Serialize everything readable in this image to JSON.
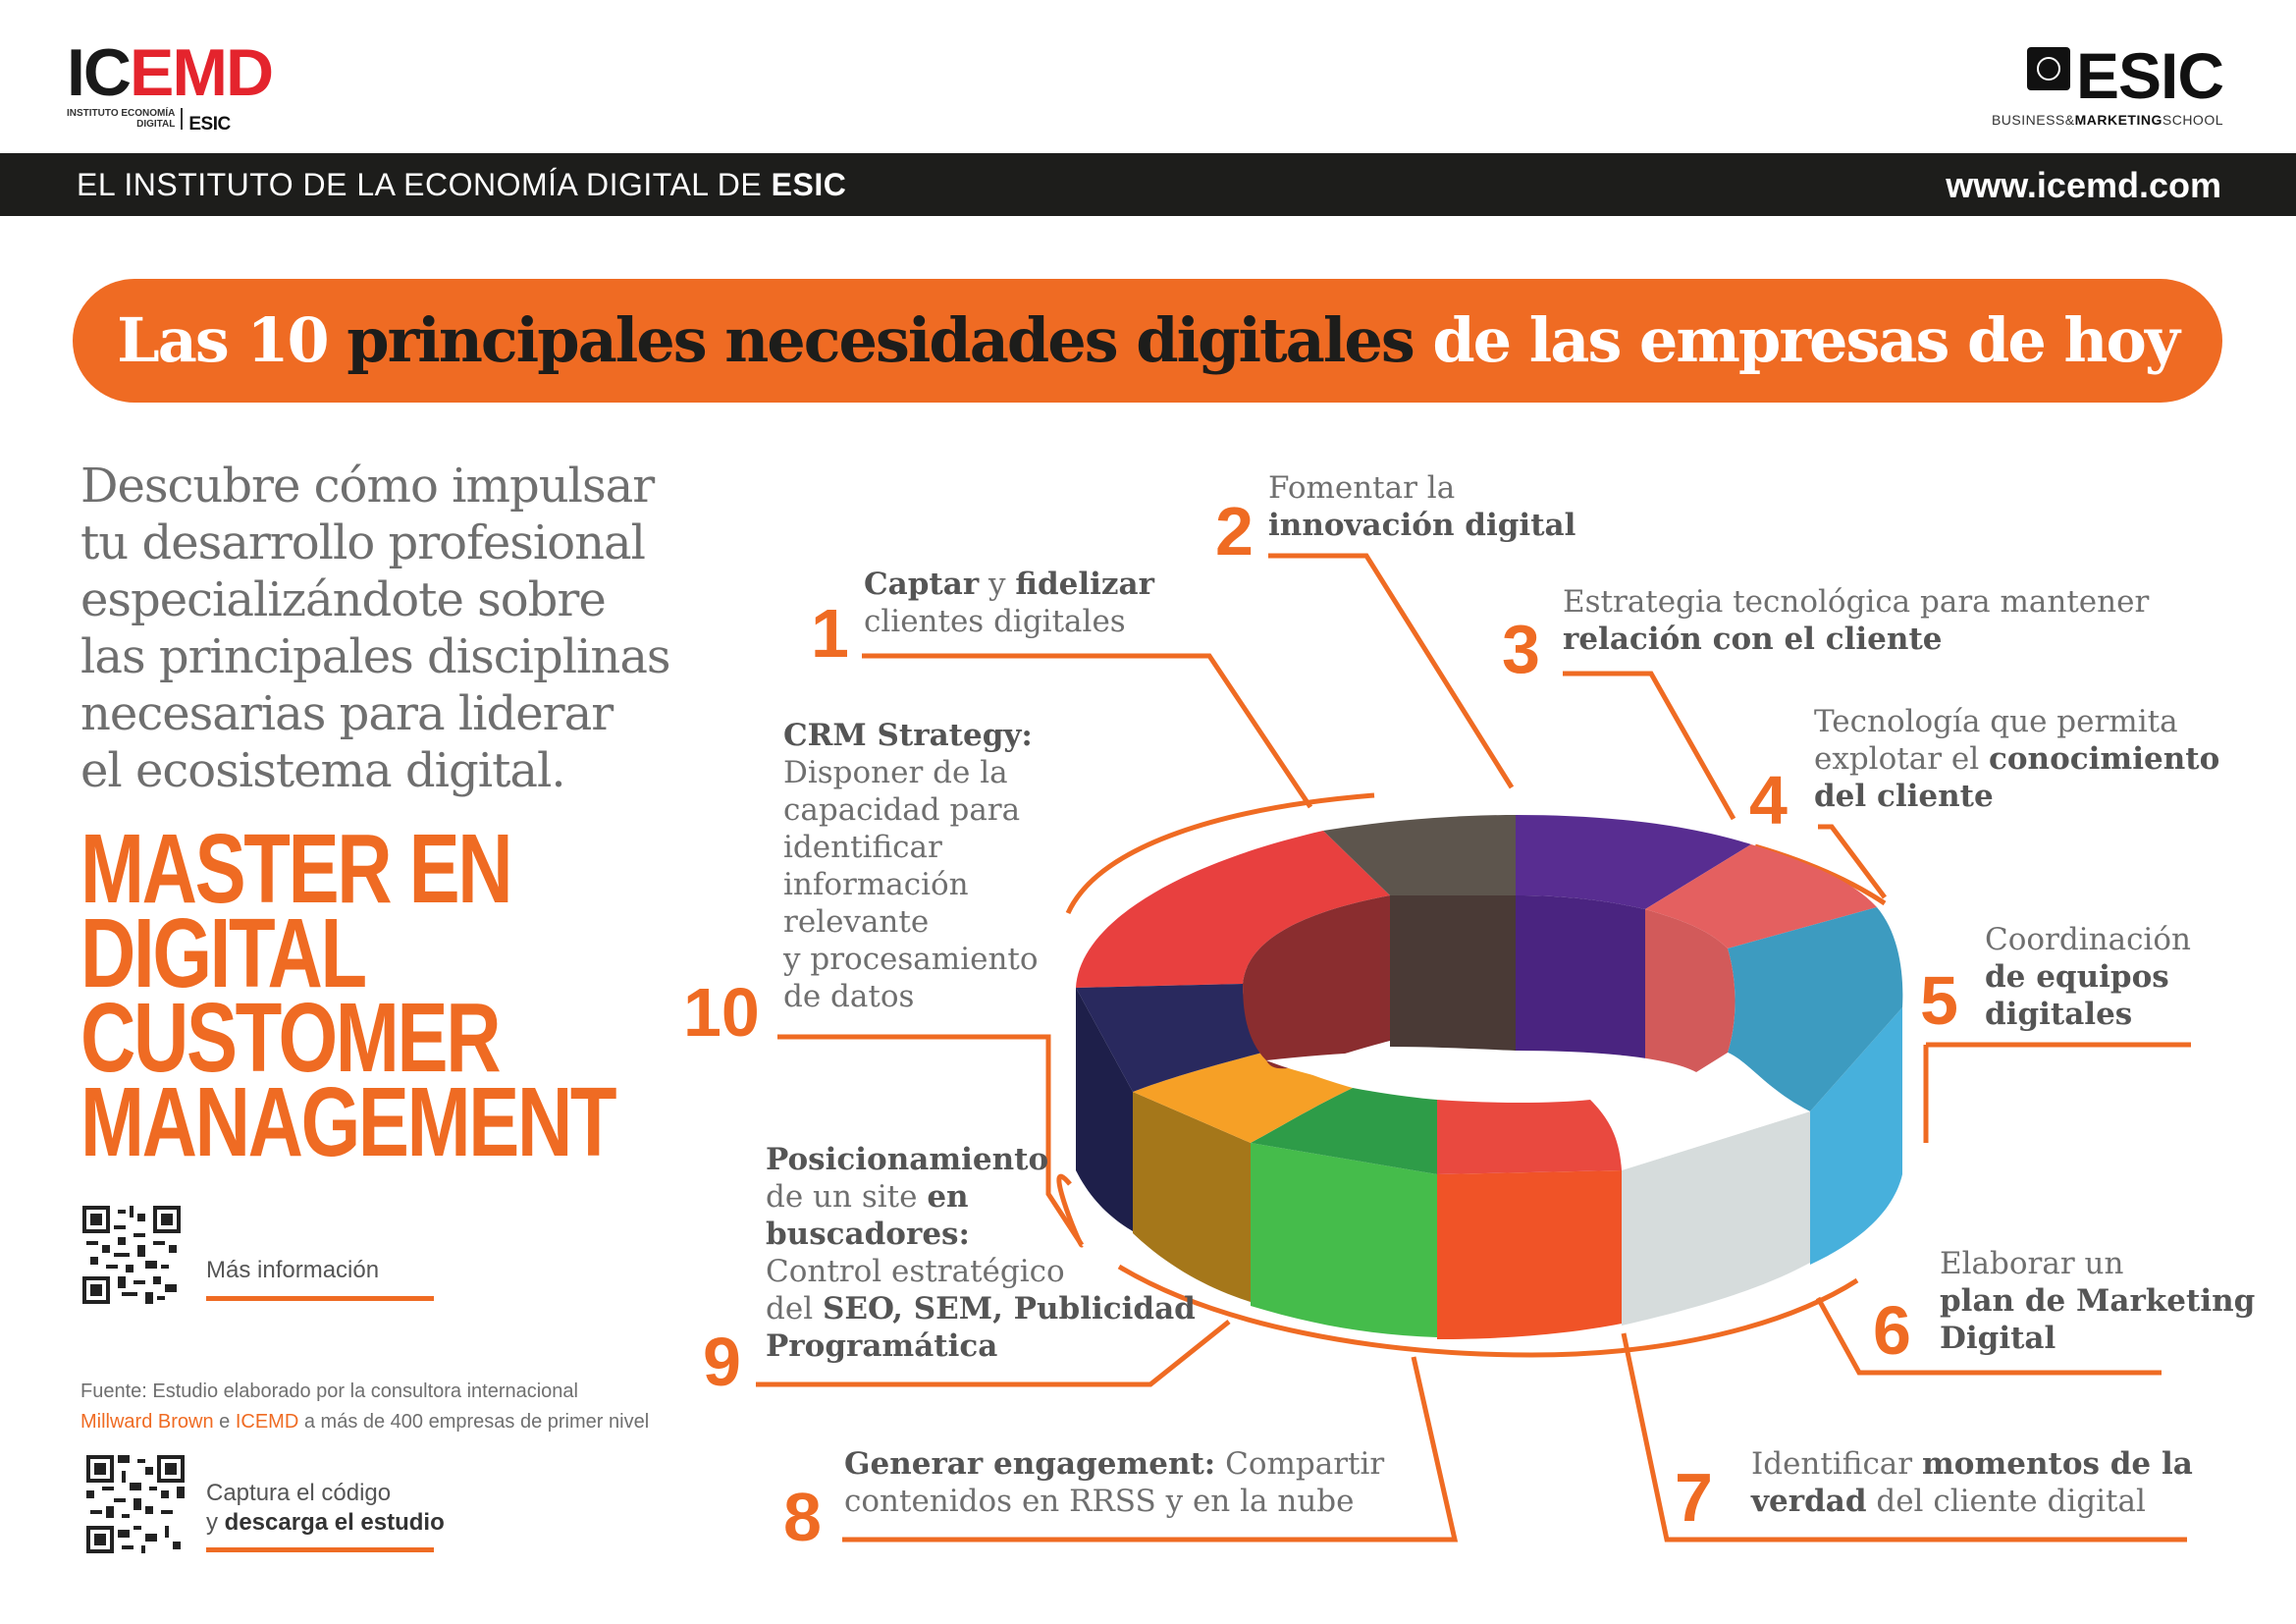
{
  "header": {
    "icemd_logo": {
      "word_black_1": "IC",
      "word_red": "EMD",
      "sub_line1": "INSTITUTO ECONOMÍA",
      "sub_line2": "DIGITAL",
      "sub_esic": "ESIC"
    },
    "esic_logo": {
      "word": "ESIC",
      "sub_a": "BUSINESS&",
      "sub_b": "MARKETING",
      "sub_c": "SCHOOL"
    },
    "bar_text_regular": "EL INSTITUTO DE LA ECONOMÍA DIGITAL DE ",
    "bar_text_bold": "ESIC",
    "website": "www.icemd.com"
  },
  "title": {
    "part1": "Las 10 ",
    "part2": "principales necesidades digitales",
    "part3": " de las empresas de hoy"
  },
  "left": {
    "intro_lines": [
      "Descubre cómo impulsar",
      "tu desarrollo profesional",
      "especializándote sobre",
      "las principales disciplinas",
      "necesarias para liderar",
      "el ecosistema digital."
    ],
    "master_lines": [
      "MASTER EN",
      "DIGITAL",
      "CUSTOMER",
      "MANAGEMENT"
    ],
    "mas_info": "Más información",
    "fuente_line1": "Fuente: Estudio elaborado por la consultora internacional",
    "fuente_l2_a": "Millward Brown",
    "fuente_l2_b": " e ",
    "fuente_l2_c": "ICEMD",
    "fuente_l2_d": " a más de 400 empresas de primer nivel",
    "captura_line1": "Captura el código",
    "captura_l2_a": "y ",
    "captura_l2_b": "descarga el estudio"
  },
  "needs": [
    {
      "num": "1",
      "l1_b1": "Captar",
      "l1_r": " y ",
      "l1_b2": "fidelizar",
      "l2": "clientes digitales"
    },
    {
      "num": "2",
      "l1": "Fomentar la",
      "l2_b": "innovación digital"
    },
    {
      "num": "3",
      "l1": "Estrategia tecnológica para mantener",
      "l2_b": "relación con el cliente"
    },
    {
      "num": "4",
      "l1": "Tecnología que permita",
      "l2_r": "explotar el ",
      "l2_b": "conocimiento",
      "l3_b": "del cliente"
    },
    {
      "num": "5",
      "l1": "Coordinación",
      "l2_b": "de equipos",
      "l3_b": "digitales"
    },
    {
      "num": "6",
      "l1": "Elaborar un",
      "l2_b": "plan de Marketing",
      "l3_b": "Digital"
    },
    {
      "num": "7",
      "l1_r1": "Identificar ",
      "l1_b": "momentos de la",
      "l2_b": "verdad",
      "l2_r": " del cliente digital"
    },
    {
      "num": "8",
      "l1_b": "Generar engagement:",
      "l1_r": " Compartir",
      "l2": "contenidos en RRSS y en la nube"
    },
    {
      "num": "9",
      "l1_b": "Posicionamiento",
      "l2_r": "de un site ",
      "l2_b": "en",
      "l3_b": "buscadores:",
      "l4": "Control estratégico",
      "l5_r": "del ",
      "l5_b": "SEO, SEM, Publicidad",
      "l6_b": "Programática"
    },
    {
      "num": "10",
      "l1_b": "CRM Strategy:",
      "lines": [
        "Disponer de la",
        "capacidad para",
        "identificar",
        "información",
        "relevante",
        "y procesamiento",
        "de datos"
      ]
    }
  ],
  "colors": {
    "orange": "#ef6b23",
    "bar": "#1d1d1b"
  }
}
